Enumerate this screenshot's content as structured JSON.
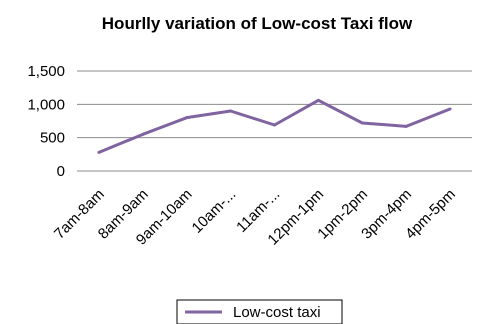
{
  "chart_data": {
    "type": "line",
    "title": "Hourlly variation of Low-cost Taxi flow",
    "xlabel": "",
    "ylabel": "",
    "categories": [
      "7am-8am",
      "8am-9am",
      "9am-10am",
      "10am-...",
      "11am-...",
      "12pm-1pm",
      "1pm-2pm",
      "3pm-4pm",
      "4pm-5pm"
    ],
    "series": [
      {
        "name": "Low-cost taxi",
        "values": [
          280,
          550,
          800,
          900,
          690,
          1060,
          720,
          670,
          930
        ]
      }
    ],
    "ylim": [
      0,
      1500
    ],
    "yticks": [
      0,
      500,
      1000,
      1500
    ],
    "ytick_labels": [
      "0",
      "500",
      "1,000",
      "1,500"
    ],
    "grid": true,
    "legend_position": "bottom",
    "colors": {
      "line": "#8064A2",
      "grid": "#8c8c8c",
      "text": "#000000"
    }
  }
}
